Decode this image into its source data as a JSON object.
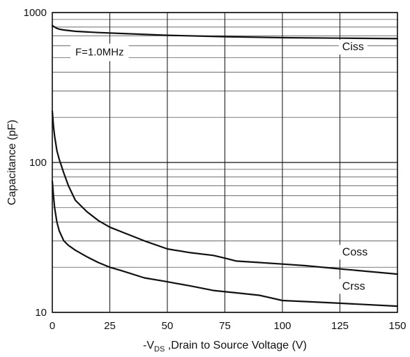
{
  "chart_data": {
    "type": "line",
    "x_axis": {
      "label_prefix": "-V",
      "label_sub": "DS",
      "label_suffix": " ,Drain to Source Voltage (V)",
      "ticks": [
        0,
        25,
        50,
        75,
        100,
        125,
        150
      ],
      "range": [
        0,
        150
      ]
    },
    "y_axis": {
      "label": "Capacitance  (pF)",
      "scale": "log",
      "range": [
        10,
        1000
      ],
      "major_ticks": [
        10,
        100,
        1000
      ],
      "minor_gridlines": [
        20,
        30,
        40,
        50,
        60,
        70,
        80,
        90,
        200,
        300,
        400,
        500,
        600,
        700,
        800,
        900
      ]
    },
    "grid": true,
    "annotation": "F=1.0MHz",
    "series": [
      {
        "name": "Ciss",
        "x": [
          0,
          1,
          2,
          3,
          5,
          10,
          20,
          30,
          50,
          75,
          100,
          125,
          150
        ],
        "y": [
          820,
          800,
          785,
          775,
          765,
          750,
          735,
          725,
          705,
          690,
          680,
          675,
          670
        ]
      },
      {
        "name": "Coss",
        "x": [
          0,
          0.5,
          1,
          2,
          3,
          5,
          7,
          10,
          15,
          20,
          25,
          30,
          40,
          50,
          60,
          70,
          75,
          80,
          90,
          100,
          110,
          125,
          150
        ],
        "y": [
          220,
          175,
          150,
          120,
          105,
          85,
          70,
          56,
          47,
          41,
          37,
          34.5,
          30,
          26.5,
          25,
          24,
          23,
          22,
          21.5,
          21,
          20.5,
          19.5,
          18
        ]
      },
      {
        "name": "Crss",
        "x": [
          0,
          0.5,
          1,
          2,
          3,
          5,
          7,
          10,
          15,
          20,
          25,
          30,
          40,
          50,
          60,
          70,
          80,
          90,
          100,
          110,
          125,
          150
        ],
        "y": [
          75,
          60,
          50,
          40,
          35,
          30,
          28,
          26,
          23.5,
          21.5,
          20,
          19,
          17,
          16,
          15,
          14,
          13.5,
          13,
          12,
          11.8,
          11.5,
          11
        ]
      }
    ]
  }
}
